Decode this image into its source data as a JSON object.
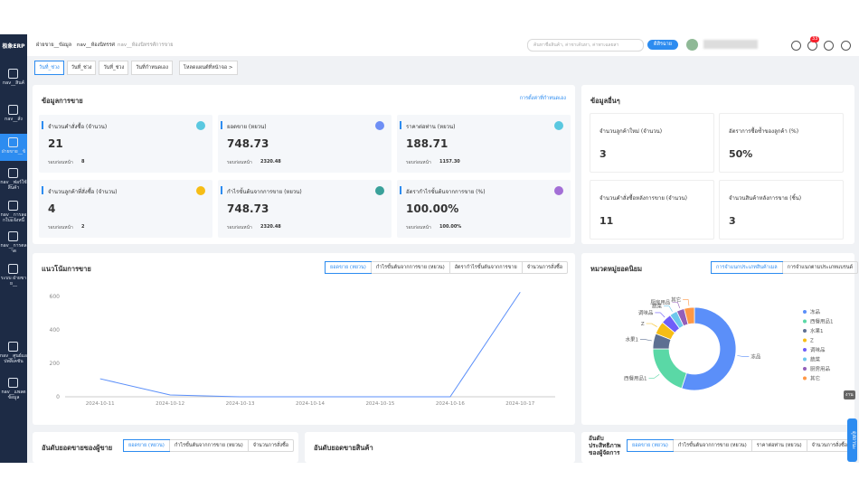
{
  "sidebar": {
    "logo": "极象ERP",
    "items": [
      "nav__สินค้",
      "nav__สั่ง",
      "ฝ่ายขาย__ข้",
      "nav__ฟอร์ใช้สินค้า",
      "nav__การลอกใบแจ้งหนี้",
      "nav__การตลาด",
      "ระบบ ฝ่ายขาย__",
      "nav__ศูนย์แอปพลิเคชัน",
      "nav__แพลตข้อมูล"
    ]
  },
  "topbar": {
    "breadcrumbs": [
      "ฝ่ายขาย__ข้อมูล",
      "nav__ห้องนิทรรศ",
      "nav__ห้องนิทรรศ์การขาย"
    ],
    "search_placeholder": "ค้นหาชื่อสินค้า, ค่าชาเค้นหา, ค่าพาเฉลยสา",
    "button": "ดิสิรฉาย",
    "badge": "33"
  },
  "date_tabs": [
    "วันที่_ช่วง",
    "วันที่_ช่วง",
    "วันที่_ช่วง",
    "วันที่กำหนดเอง",
    "โหลดแผนต์ที่หน้าจอ >"
  ],
  "sales_panel": {
    "title": "ข้อมูลการขาย",
    "link": "การตั้งค่าที่กำหนดเอง",
    "prev_label": "รอบก่อนหน้า",
    "cards": [
      {
        "label": "จำนวนคำสั่งซื้อ (จำนวน)",
        "value": "21",
        "prev": "8"
      },
      {
        "label": "ยอดขาย (หยวน)",
        "value": "748.73",
        "prev": "2320.48"
      },
      {
        "label": "ราคาต่อท่าน (หยวน)",
        "value": "188.71",
        "prev": "1157.30"
      },
      {
        "label": "จำนวนลูกค้าที่สั่งซื้อ (จำนวน)",
        "value": "4",
        "prev": "2"
      },
      {
        "label": "กำไรขั้นต้นจากการขาย (หยวน)",
        "value": "748.73",
        "prev": "2320.48"
      },
      {
        "label": "อัตรากำไรขั้นต้นจากการขาย (%)",
        "value": "100.00%",
        "prev": "100.00%"
      }
    ]
  },
  "other_panel": {
    "title": "ข้อมูลอื่นๆ",
    "cards": [
      {
        "label": "จำนวนลูกค้าใหม่ (จำนวน)",
        "value": "3"
      },
      {
        "label": "อัตราการซื้อซ้ำของลูกค้า (%)",
        "value": "50%"
      },
      {
        "label": "จำนวนคำสั่งซื้อหลังการขาย (จำนวน)",
        "value": "11"
      },
      {
        "label": "จำนวนสินค้าหลังการขาย (ชิ้น)",
        "value": "3"
      }
    ]
  },
  "chart_data": [
    {
      "type": "line",
      "title": "แนวโน้มการขาย",
      "tabs": [
        "ยอดขาย (หยวน)",
        "กำไรขั้นต้นจากการขาย (หยวน)",
        "อัตรากำไรขั้นต้นจากการขาย",
        "จำนวนการสั่งซื้อ"
      ],
      "categories": [
        "2024-10-11",
        "2024-10-12",
        "2024-10-13",
        "2024-10-14",
        "2024-10-15",
        "2024-10-16",
        "2024-10-17"
      ],
      "values": [
        108,
        11,
        0,
        0,
        0,
        0,
        627
      ],
      "color": "#5b8ff9",
      "ylim": [
        0,
        650
      ],
      "yticks": [
        0,
        200,
        400,
        600
      ],
      "grid": false
    },
    {
      "type": "pie",
      "title": "หมวดหมู่ยอดนิยม",
      "tabs": [
        "การจำแนกประเภทสินค้าเมล",
        "การจำแนกตามประเภทแบรนด์"
      ],
      "categories": [
        "冻品",
        "西餐用品1",
        "水果1",
        "Z",
        "调味品",
        "蔬菜",
        "厨房用品",
        "其它"
      ],
      "values": [
        55,
        20,
        6,
        5,
        4,
        3,
        3,
        4
      ],
      "colors": [
        "#5b8ff9",
        "#5ad8a6",
        "#5d7092",
        "#f6bd16",
        "#6f5ef9",
        "#6dc8ec",
        "#945fb9",
        "#ff9845"
      ],
      "legend": "right"
    }
  ],
  "bottom_panels": [
    {
      "title": "อันดับยอดขายของผู้ขาย",
      "tabs": [
        "ยอดขาย (หยวน)",
        "กำไรขั้นต้นจากการขาย (หยวน)",
        "จำนวนการสั่งซื้อ"
      ]
    },
    {
      "title": "อันดับยอดขายสินค้า",
      "tabs": []
    },
    {
      "title": "อันดับประสิทธิภาพของผู้จัดการ",
      "tabs": [
        "ยอดขาย (หยวน)",
        "กำไรขั้นต้นจากการขาย (หยวน)",
        "ราคาต่อท่าน (หยวน)",
        "จำนวนการสั่งซื้อ"
      ]
    }
  ],
  "float": {
    "task": "งาน",
    "status": "ดูสถานะ"
  }
}
